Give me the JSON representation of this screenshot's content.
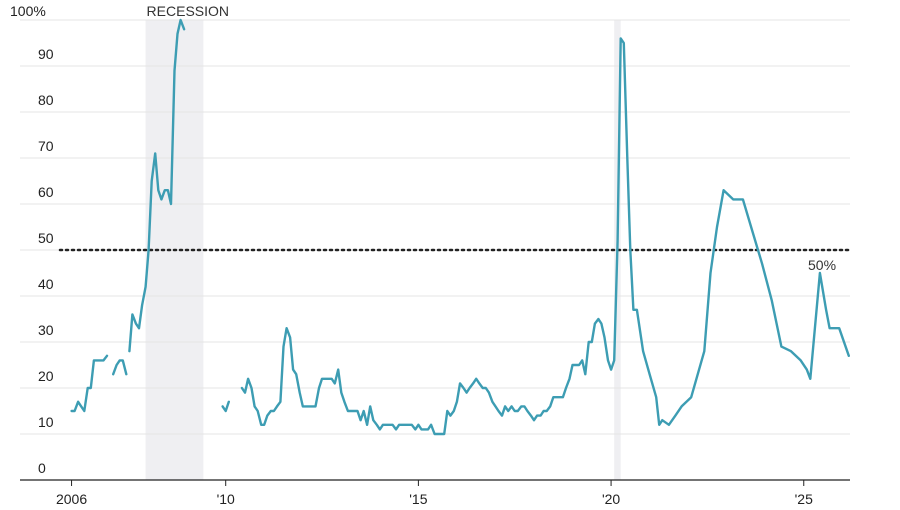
{
  "chart_data": {
    "type": "line",
    "title": "",
    "xlabel": "",
    "ylabel": "",
    "ylim": [
      0,
      100
    ],
    "y_ticks": [
      {
        "value": 0,
        "label": "0"
      },
      {
        "value": 10,
        "label": "10"
      },
      {
        "value": 20,
        "label": "20"
      },
      {
        "value": 30,
        "label": "30"
      },
      {
        "value": 40,
        "label": "40"
      },
      {
        "value": 50,
        "label": "50"
      },
      {
        "value": 60,
        "label": "60"
      },
      {
        "value": 70,
        "label": "70"
      },
      {
        "value": 80,
        "label": "80"
      },
      {
        "value": 90,
        "label": "90"
      },
      {
        "value": 100,
        "label": "100%"
      }
    ],
    "xlim": [
      2005.7,
      2026.2
    ],
    "x_ticks": [
      {
        "value": 2006,
        "label": "2006"
      },
      {
        "value": 2010,
        "label": "'10"
      },
      {
        "value": 2015,
        "label": "'15"
      },
      {
        "value": 2020,
        "label": "'20"
      },
      {
        "value": 2025,
        "label": "'25"
      }
    ],
    "grid": true,
    "recession_bands": [
      {
        "start": 2007.92,
        "end": 2009.42,
        "label": "RECESSION"
      },
      {
        "start": 2020.08,
        "end": 2020.25,
        "label": ""
      }
    ],
    "reference_line": {
      "value": 50,
      "label": "50%"
    },
    "colors": {
      "line": "#3d9db3",
      "band": "#efeff2",
      "grid": "#e4e4e4",
      "reference": "#222222"
    },
    "series": [
      {
        "segments": [
          [
            [
              2006.0,
              15
            ],
            [
              2006.08,
              15
            ],
            [
              2006.17,
              17
            ],
            [
              2006.25,
              16
            ],
            [
              2006.33,
              15
            ],
            [
              2006.42,
              20
            ],
            [
              2006.5,
              20
            ],
            [
              2006.58,
              26
            ],
            [
              2006.67,
              26
            ],
            [
              2006.75,
              26
            ],
            [
              2006.83,
              26
            ],
            [
              2006.92,
              27
            ]
          ],
          [
            [
              2007.08,
              23
            ],
            [
              2007.17,
              25
            ],
            [
              2007.25,
              26
            ],
            [
              2007.33,
              26
            ],
            [
              2007.42,
              23
            ]
          ],
          [
            [
              2007.5,
              28
            ],
            [
              2007.58,
              36
            ],
            [
              2007.67,
              34
            ],
            [
              2007.75,
              33
            ],
            [
              2007.83,
              38
            ],
            [
              2007.92,
              42
            ],
            [
              2008.0,
              50
            ],
            [
              2008.08,
              65
            ],
            [
              2008.17,
              71
            ],
            [
              2008.25,
              63
            ],
            [
              2008.33,
              61
            ],
            [
              2008.42,
              63
            ],
            [
              2008.5,
              63
            ],
            [
              2008.58,
              60
            ],
            [
              2008.67,
              89
            ],
            [
              2008.75,
              97
            ],
            [
              2008.83,
              100
            ],
            [
              2008.92,
              98
            ]
          ],
          [
            [
              2009.92,
              16
            ],
            [
              2010.0,
              15
            ],
            [
              2010.08,
              17
            ]
          ],
          [
            [
              2010.42,
              20
            ],
            [
              2010.5,
              19
            ],
            [
              2010.58,
              22
            ],
            [
              2010.67,
              20
            ],
            [
              2010.75,
              16
            ],
            [
              2010.83,
              15
            ],
            [
              2010.92,
              12
            ],
            [
              2011.0,
              12
            ],
            [
              2011.08,
              14
            ],
            [
              2011.17,
              15
            ],
            [
              2011.25,
              15
            ],
            [
              2011.33,
              16
            ],
            [
              2011.42,
              17
            ],
            [
              2011.5,
              29
            ],
            [
              2011.58,
              33
            ],
            [
              2011.67,
              31
            ],
            [
              2011.75,
              24
            ],
            [
              2011.83,
              23
            ],
            [
              2011.92,
              19
            ],
            [
              2012.0,
              16
            ],
            [
              2012.08,
              16
            ],
            [
              2012.17,
              16
            ],
            [
              2012.25,
              16
            ],
            [
              2012.33,
              16
            ],
            [
              2012.42,
              20
            ],
            [
              2012.5,
              22
            ],
            [
              2012.58,
              22
            ],
            [
              2012.67,
              22
            ],
            [
              2012.75,
              22
            ],
            [
              2012.83,
              21
            ],
            [
              2012.92,
              24
            ],
            [
              2013.0,
              19
            ],
            [
              2013.08,
              17
            ],
            [
              2013.17,
              15
            ],
            [
              2013.25,
              15
            ],
            [
              2013.33,
              15
            ],
            [
              2013.42,
              15
            ],
            [
              2013.5,
              13
            ],
            [
              2013.58,
              15
            ],
            [
              2013.67,
              12
            ],
            [
              2013.75,
              16
            ],
            [
              2013.83,
              13
            ],
            [
              2013.92,
              12
            ],
            [
              2014.0,
              11
            ],
            [
              2014.08,
              12
            ],
            [
              2014.17,
              12
            ],
            [
              2014.25,
              12
            ],
            [
              2014.33,
              12
            ],
            [
              2014.42,
              11
            ],
            [
              2014.5,
              12
            ],
            [
              2014.58,
              12
            ],
            [
              2014.67,
              12
            ],
            [
              2014.75,
              12
            ],
            [
              2014.83,
              12
            ],
            [
              2014.92,
              11
            ],
            [
              2015.0,
              12
            ],
            [
              2015.08,
              11
            ],
            [
              2015.17,
              11
            ],
            [
              2015.25,
              11
            ],
            [
              2015.33,
              12
            ],
            [
              2015.42,
              10
            ],
            [
              2015.5,
              10
            ],
            [
              2015.58,
              10
            ],
            [
              2015.67,
              10
            ],
            [
              2015.75,
              15
            ],
            [
              2015.83,
              14
            ],
            [
              2015.92,
              15
            ],
            [
              2016.0,
              17
            ],
            [
              2016.08,
              21
            ],
            [
              2016.17,
              20
            ],
            [
              2016.25,
              19
            ],
            [
              2016.33,
              20
            ],
            [
              2016.42,
              21
            ],
            [
              2016.5,
              22
            ],
            [
              2016.58,
              21
            ],
            [
              2016.67,
              20
            ],
            [
              2016.75,
              20
            ],
            [
              2016.83,
              19
            ],
            [
              2016.92,
              17
            ],
            [
              2017.0,
              16
            ],
            [
              2017.08,
              15
            ],
            [
              2017.17,
              14
            ],
            [
              2017.25,
              16
            ],
            [
              2017.33,
              15
            ],
            [
              2017.42,
              16
            ],
            [
              2017.5,
              15
            ],
            [
              2017.58,
              15
            ],
            [
              2017.67,
              16
            ],
            [
              2017.75,
              16
            ],
            [
              2017.83,
              15
            ],
            [
              2017.92,
              14
            ],
            [
              2018.0,
              13
            ],
            [
              2018.08,
              14
            ],
            [
              2018.17,
              14
            ],
            [
              2018.25,
              15
            ],
            [
              2018.33,
              15
            ],
            [
              2018.42,
              16
            ],
            [
              2018.5,
              18
            ],
            [
              2018.58,
              18
            ],
            [
              2018.67,
              18
            ],
            [
              2018.75,
              18
            ],
            [
              2018.83,
              20
            ],
            [
              2018.92,
              22
            ],
            [
              2019.0,
              25
            ],
            [
              2019.08,
              25
            ],
            [
              2019.17,
              25
            ],
            [
              2019.25,
              26
            ],
            [
              2019.33,
              23
            ],
            [
              2019.42,
              30
            ],
            [
              2019.5,
              30
            ],
            [
              2019.58,
              34
            ],
            [
              2019.67,
              35
            ],
            [
              2019.75,
              34
            ],
            [
              2019.83,
              31
            ],
            [
              2019.92,
              26
            ],
            [
              2020.0,
              24
            ],
            [
              2020.08,
              26
            ],
            [
              2020.17,
              52
            ],
            [
              2020.25,
              96
            ],
            [
              2020.33,
              95
            ],
            [
              2020.42,
              70
            ],
            [
              2020.5,
              50
            ],
            [
              2020.58,
              37
            ],
            [
              2020.67,
              37
            ],
            [
              2020.83,
              28
            ],
            [
              2021.0,
              23
            ],
            [
              2021.17,
              18
            ],
            [
              2021.25,
              12
            ],
            [
              2021.33,
              13
            ],
            [
              2021.5,
              12
            ],
            [
              2021.67,
              14
            ],
            [
              2021.83,
              16
            ],
            [
              2022.08,
              18
            ],
            [
              2022.42,
              28
            ],
            [
              2022.58,
              45
            ],
            [
              2022.75,
              55
            ],
            [
              2022.92,
              63
            ],
            [
              2023.17,
              61
            ],
            [
              2023.42,
              61
            ],
            [
              2023.67,
              54
            ],
            [
              2023.92,
              47
            ],
            [
              2024.17,
              39
            ],
            [
              2024.42,
              29
            ],
            [
              2024.67,
              28
            ],
            [
              2024.92,
              26
            ],
            [
              2025.08,
              24
            ],
            [
              2025.17,
              22
            ],
            [
              2025.42,
              45
            ],
            [
              2025.58,
              37
            ],
            [
              2025.67,
              33
            ],
            [
              2025.83,
              33
            ],
            [
              2025.92,
              33
            ],
            [
              2026.17,
              27
            ]
          ]
        ]
      }
    ]
  }
}
